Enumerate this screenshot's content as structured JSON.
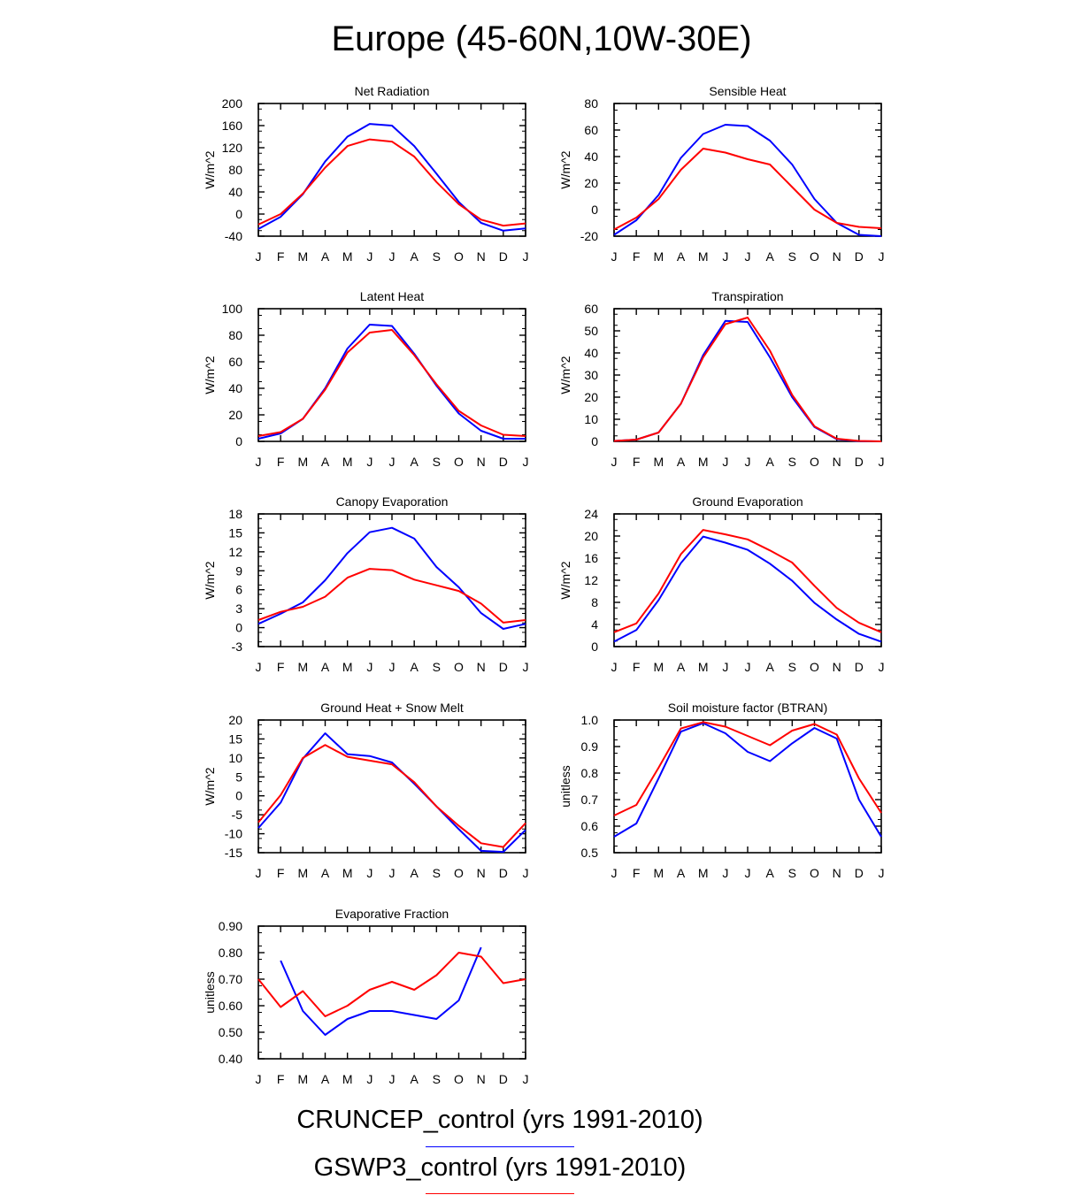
{
  "title": "Europe (45-60N,10W-30E)",
  "months": [
    "J",
    "F",
    "M",
    "A",
    "M",
    "J",
    "J",
    "A",
    "S",
    "O",
    "N",
    "D",
    "J"
  ],
  "legend": [
    {
      "label": "CRUNCEP_control (yrs 1991-2010)",
      "color": "#0000ff"
    },
    {
      "label": "GSWP3_control (yrs 1991-2010)",
      "color": "#ff0000"
    }
  ],
  "chart_data": [
    {
      "type": "line",
      "title": "Net Radiation",
      "ylabel": "W/m^2",
      "ylim": [
        -40,
        200
      ],
      "yticks": [
        "200",
        "160",
        "120",
        "80",
        "40",
        "0",
        "-40"
      ],
      "series": [
        {
          "name": "CRUNCEP_control (yrs 1991-2010)",
          "color": "#0000ff",
          "values": [
            -27,
            -5,
            36,
            95,
            140,
            163,
            160,
            123,
            73,
            22,
            -16,
            -30,
            -26
          ]
        },
        {
          "name": "GSWP3_control (yrs 1991-2010)",
          "color": "#ff0000",
          "values": [
            -19,
            0,
            37,
            84,
            123,
            135,
            131,
            104,
            58,
            18,
            -10,
            -21,
            -17
          ]
        }
      ]
    },
    {
      "type": "line",
      "title": "Sensible Heat",
      "ylabel": "W/m^2",
      "ylim": [
        -20,
        80
      ],
      "yticks": [
        "80",
        "60",
        "40",
        "20",
        "0",
        "-20"
      ],
      "series": [
        {
          "name": "CRUNCEP_control (yrs 1991-2010)",
          "color": "#0000ff",
          "values": [
            -19,
            -8,
            11,
            39,
            57,
            64,
            63,
            52,
            34,
            8,
            -10,
            -19,
            -20
          ]
        },
        {
          "name": "GSWP3_control (yrs 1991-2010)",
          "color": "#ff0000",
          "values": [
            -15,
            -6,
            8,
            30,
            46,
            43,
            38,
            34,
            17,
            0,
            -10,
            -13,
            -14
          ]
        }
      ]
    },
    {
      "type": "line",
      "title": "Latent Heat",
      "ylabel": "W/m^2",
      "ylim": [
        0,
        100
      ],
      "yticks": [
        "100",
        "80",
        "60",
        "40",
        "20",
        "0"
      ],
      "series": [
        {
          "name": "CRUNCEP_control (yrs 1991-2010)",
          "color": "#0000ff",
          "values": [
            2,
            6,
            17,
            40,
            70,
            88,
            87,
            66,
            42,
            21,
            8,
            2,
            2
          ]
        },
        {
          "name": "GSWP3_control (yrs 1991-2010)",
          "color": "#ff0000",
          "values": [
            4,
            7,
            17,
            39,
            67,
            82,
            84,
            65,
            43,
            23,
            12,
            5,
            4
          ]
        }
      ]
    },
    {
      "type": "line",
      "title": "Transpiration",
      "ylabel": "W/m^2",
      "ylim": [
        0,
        60
      ],
      "yticks": [
        "60",
        "50",
        "40",
        "30",
        "20",
        "10",
        "0"
      ],
      "series": [
        {
          "name": "CRUNCEP_control (yrs 1991-2010)",
          "color": "#0000ff",
          "values": [
            0.2,
            0.8,
            4,
            17,
            39,
            54.5,
            54,
            38,
            20,
            6.5,
            1,
            0.1,
            0
          ]
        },
        {
          "name": "GSWP3_control (yrs 1991-2010)",
          "color": "#ff0000",
          "values": [
            0.2,
            0.8,
            4,
            17,
            38,
            53,
            56,
            41,
            21,
            6.8,
            1.2,
            0.2,
            0
          ]
        }
      ]
    },
    {
      "type": "line",
      "title": "Canopy Evaporation",
      "ylabel": "W/m^2",
      "ylim": [
        -3,
        18
      ],
      "yticks": [
        "18",
        "15",
        "12",
        "9",
        "6",
        "3",
        "0",
        "-3"
      ],
      "series": [
        {
          "name": "CRUNCEP_control (yrs 1991-2010)",
          "color": "#0000ff",
          "values": [
            0.6,
            2.2,
            4.0,
            7.5,
            11.8,
            15.1,
            15.8,
            14.1,
            9.6,
            6.4,
            2.3,
            -0.2,
            0.6
          ]
        },
        {
          "name": "GSWP3_control (yrs 1991-2010)",
          "color": "#ff0000",
          "values": [
            1.2,
            2.5,
            3.3,
            4.9,
            7.9,
            9.3,
            9.1,
            7.6,
            6.7,
            5.8,
            3.8,
            0.8,
            1.2
          ]
        }
      ]
    },
    {
      "type": "line",
      "title": "Ground Evaporation",
      "ylabel": "W/m^2",
      "ylim": [
        0,
        24
      ],
      "yticks": [
        "24",
        "20",
        "16",
        "12",
        "8",
        "4",
        "0"
      ],
      "series": [
        {
          "name": "CRUNCEP_control (yrs 1991-2010)",
          "color": "#0000ff",
          "values": [
            0.9,
            3.0,
            8.4,
            15.1,
            19.9,
            18.8,
            17.5,
            15.0,
            11.9,
            7.9,
            4.9,
            2.3,
            0.9
          ]
        },
        {
          "name": "GSWP3_control (yrs 1991-2010)",
          "color": "#ff0000",
          "values": [
            2.6,
            4.2,
            9.6,
            16.7,
            21.1,
            20.3,
            19.4,
            17.4,
            15.2,
            11.0,
            7.0,
            4.3,
            2.6
          ]
        }
      ]
    },
    {
      "type": "line",
      "title": "Ground Heat + Snow Melt",
      "ylabel": "W/m^2",
      "ylim": [
        -15,
        20
      ],
      "yticks": [
        "20",
        "15",
        "10",
        "5",
        "0",
        "-5",
        "-10",
        "-15"
      ],
      "series": [
        {
          "name": "CRUNCEP_control (yrs 1991-2010)",
          "color": "#0000ff",
          "values": [
            -8.5,
            -1.8,
            9.8,
            16.5,
            11.0,
            10.5,
            8.8,
            3.2,
            -2.8,
            -8.8,
            -14.5,
            -14.8,
            -9.0
          ]
        },
        {
          "name": "GSWP3_control (yrs 1991-2010)",
          "color": "#ff0000",
          "values": [
            -7.0,
            0.2,
            10.0,
            13.4,
            10.3,
            9.3,
            8.3,
            3.6,
            -2.8,
            -7.9,
            -12.5,
            -13.5,
            -7.2
          ]
        }
      ]
    },
    {
      "type": "line",
      "title": "Soil moisture factor (BTRAN)",
      "ylabel": "unitless",
      "ylim": [
        0.5,
        1.0
      ],
      "yticks": [
        "1.0",
        "0.9",
        "0.8",
        "0.7",
        "0.6",
        "0.5"
      ],
      "series": [
        {
          "name": "CRUNCEP_control (yrs 1991-2010)",
          "color": "#0000ff",
          "values": [
            0.56,
            0.61,
            0.78,
            0.956,
            0.988,
            0.95,
            0.88,
            0.845,
            0.912,
            0.97,
            0.93,
            0.7,
            0.56
          ]
        },
        {
          "name": "GSWP3_control (yrs 1991-2010)",
          "color": "#ff0000",
          "values": [
            0.64,
            0.68,
            0.82,
            0.968,
            0.992,
            0.975,
            0.94,
            0.905,
            0.96,
            0.985,
            0.945,
            0.78,
            0.65
          ]
        }
      ]
    },
    {
      "type": "line",
      "title": "Evaporative Fraction",
      "ylabel": "unitless",
      "ylim": [
        0.4,
        0.9
      ],
      "yticks": [
        "0.90",
        "0.80",
        "0.70",
        "0.60",
        "0.50",
        "0.40"
      ],
      "series": [
        {
          "name": "CRUNCEP_control (yrs 1991-2010)",
          "color": "#0000ff",
          "values": [
            null,
            0.77,
            0.58,
            0.49,
            0.55,
            0.58,
            0.58,
            0.565,
            0.55,
            0.62,
            0.82,
            null,
            null
          ]
        },
        {
          "name": "GSWP3_control (yrs 1991-2010)",
          "color": "#ff0000",
          "values": [
            0.7,
            0.595,
            0.655,
            0.56,
            0.6,
            0.66,
            0.69,
            0.66,
            0.715,
            0.8,
            0.785,
            0.685,
            0.7
          ]
        }
      ]
    }
  ]
}
